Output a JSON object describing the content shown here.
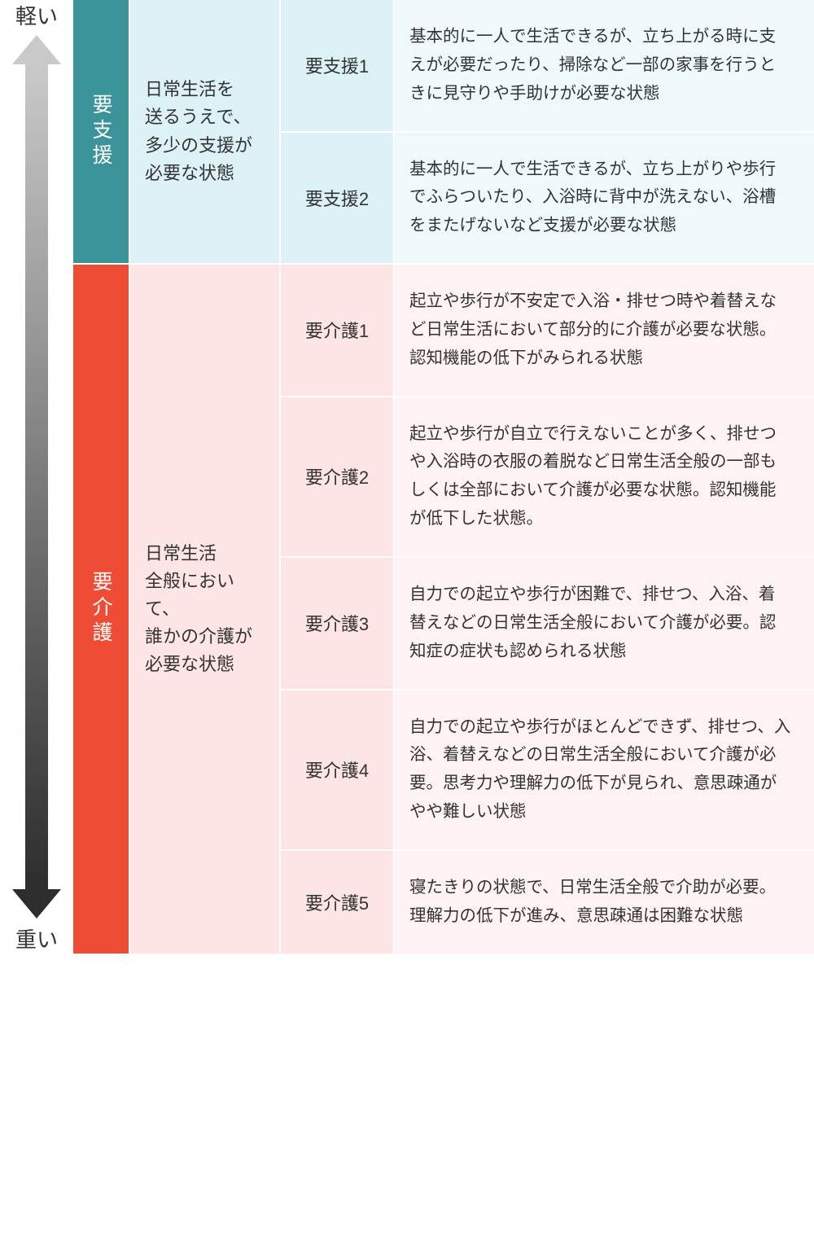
{
  "axis": {
    "top_label": "軽い",
    "bottom_label": "重い",
    "gradient_top": "#c9c9c9",
    "gradient_bottom": "#2d2d2d"
  },
  "sections": [
    {
      "id": "support",
      "category_label": "要支援",
      "category_bg": "#3b949a",
      "category_desc": "日常生活を\n送るうえで、\n多少の支援が\n必要な状態",
      "bg_desc": "#dcf2f6",
      "bg_level": "#eff9fb",
      "levels": [
        {
          "name": "要支援1",
          "desc": "基本的に一人で生活できるが、立ち上がる時に支えが必要だったり、掃除など一部の家事を行うときに見守りや手助けが必要な状態"
        },
        {
          "name": "要支援2",
          "desc": "基本的に一人で生活できるが、立ち上がりや歩行でふらついたり、入浴時に背中が洗えない、浴槽をまたげないなど支援が必要な状態"
        }
      ]
    },
    {
      "id": "care",
      "category_label": "要介護",
      "category_bg": "#ef4c36",
      "category_desc": "日常生活\n全般において、\n誰かの介護が\n必要な状態",
      "bg_desc": "#fde5e5",
      "bg_level": "#fef2f2",
      "levels": [
        {
          "name": "要介護1",
          "desc": "起立や歩行が不安定で入浴・排せつ時や着替えなど日常生活において部分的に介護が必要な状態。認知機能の低下がみられる状態"
        },
        {
          "name": "要介護2",
          "desc": "起立や歩行が自立で行えないことが多く、排せつや入浴時の衣服の着脱など日常生活全般の一部もしくは全部において介護が必要な状態。認知機能が低下した状態。"
        },
        {
          "name": "要介護3",
          "desc": "自力での起立や歩行が困難で、排せつ、入浴、着替えなどの日常生活全般において介護が必要。認知症の症状も認められる状態"
        },
        {
          "name": "要介護4",
          "desc": "自力での起立や歩行がほとんどできず、排せつ、入浴、着替えなどの日常生活全般において介護が必要。思考力や理解力の低下が見られ、意思疎通がやや難しい状態"
        },
        {
          "name": "要介護5",
          "desc": "寝たきりの状態で、日常生活全般で介助が必要。理解力の低下が進み、意思疎通は困難な状態"
        }
      ]
    }
  ]
}
